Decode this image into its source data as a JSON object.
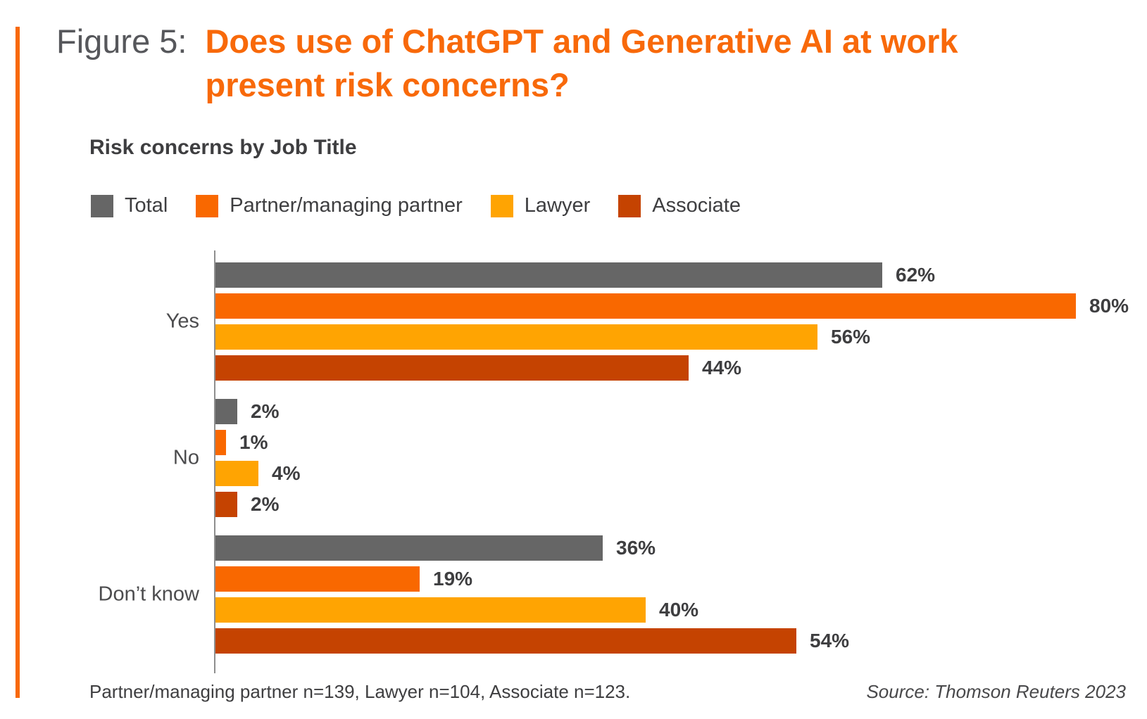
{
  "figure_label": "Figure 5:",
  "title": {
    "line1": "Does use of ChatGPT and Generative AI at work",
    "line2": "present risk concerns?",
    "color": "#f8690a"
  },
  "subtitle": "Risk concerns by Job Title",
  "accent_color": "#f8690a",
  "legend": [
    {
      "label": "Total",
      "color": "#666666"
    },
    {
      "label": "Partner/managing partner",
      "color": "#f96800"
    },
    {
      "label": "Lawyer",
      "color": "#ffa402"
    },
    {
      "label": "Associate",
      "color": "#c54301"
    }
  ],
  "chart_data": {
    "type": "bar",
    "orientation": "horizontal",
    "title": "Risk concerns by Job Title",
    "categories": [
      "Yes",
      "No",
      "Don’t know"
    ],
    "series": [
      {
        "name": "Total",
        "color": "#666666",
        "values": [
          62,
          2,
          36
        ]
      },
      {
        "name": "Partner/managing partner",
        "color": "#f96800",
        "values": [
          80,
          1,
          19
        ]
      },
      {
        "name": "Lawyer",
        "color": "#ffa402",
        "values": [
          56,
          4,
          40
        ]
      },
      {
        "name": "Associate",
        "color": "#c54301",
        "values": [
          44,
          2,
          54
        ]
      }
    ],
    "value_label_format": "percent",
    "xlim": [
      0,
      100
    ],
    "grid": false,
    "legend_position": "top"
  },
  "footer": {
    "note": "Partner/managing partner n=139, Lawyer n=104, Associate n=123.",
    "source": "Source: Thomson Reuters 2023"
  }
}
